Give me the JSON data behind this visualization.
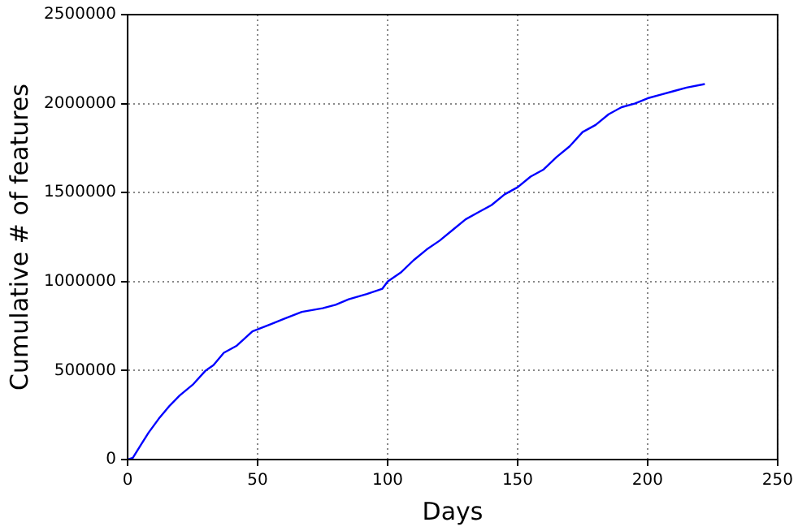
{
  "chart_data": {
    "type": "line",
    "xlabel": "Days",
    "ylabel": "Cumulative # of features",
    "series": [
      {
        "color": "#0000ff",
        "x": [
          0,
          2,
          5,
          8,
          12,
          16,
          20,
          25,
          30,
          33,
          37,
          42,
          45,
          48,
          55,
          60,
          67,
          75,
          80,
          85,
          92,
          98,
          100,
          105,
          110,
          115,
          120,
          125,
          130,
          135,
          140,
          145,
          150,
          155,
          160,
          165,
          170,
          175,
          180,
          185,
          190,
          195,
          200,
          205,
          210,
          215,
          222
        ],
        "values": [
          0,
          10000,
          80000,
          150000,
          230000,
          300000,
          360000,
          420000,
          500000,
          530000,
          600000,
          640000,
          680000,
          720000,
          760000,
          790000,
          830000,
          850000,
          870000,
          900000,
          930000,
          960000,
          1000000,
          1050000,
          1120000,
          1180000,
          1230000,
          1290000,
          1350000,
          1390000,
          1430000,
          1490000,
          1530000,
          1590000,
          1630000,
          1700000,
          1760000,
          1840000,
          1880000,
          1940000,
          1980000,
          2000000,
          2030000,
          2050000,
          2070000,
          2090000,
          2110000
        ]
      }
    ],
    "xlim": [
      0,
      250
    ],
    "xticks": [
      0,
      50,
      100,
      150,
      200,
      250
    ],
    "ylim": [
      0,
      2500000
    ],
    "yticks": [
      0,
      500000,
      1000000,
      1500000,
      2000000,
      2500000
    ],
    "grid": true,
    "legend": false,
    "marker": "none",
    "line_style": "solid"
  }
}
